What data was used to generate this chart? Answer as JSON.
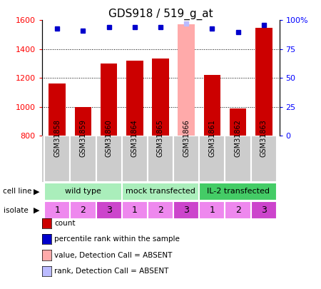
{
  "title": "GDS918 / 519_g_at",
  "samples": [
    "GSM31858",
    "GSM31859",
    "GSM31860",
    "GSM31864",
    "GSM31865",
    "GSM31866",
    "GSM31861",
    "GSM31862",
    "GSM31863"
  ],
  "bar_values": [
    1160,
    1000,
    1300,
    1320,
    1335,
    1570,
    1220,
    990,
    1545
  ],
  "rank_values": [
    93,
    91,
    94,
    94,
    94,
    97,
    93,
    90,
    96
  ],
  "absent_idx": [
    5
  ],
  "bar_color_normal": "#cc0000",
  "bar_color_absent": "#ffaaaa",
  "rank_color_normal": "#0000cc",
  "rank_color_absent": "#bbbbff",
  "ylim_left": [
    800,
    1600
  ],
  "ylim_right": [
    0,
    100
  ],
  "yticks_left": [
    800,
    1000,
    1200,
    1400,
    1600
  ],
  "yticks_right": [
    0,
    25,
    50,
    75,
    100
  ],
  "cell_line_labels": [
    "wild type",
    "mock transfected",
    "IL-2 transfected"
  ],
  "cell_line_spans": [
    [
      0,
      3
    ],
    [
      3,
      6
    ],
    [
      6,
      9
    ]
  ],
  "cell_line_colors": [
    "#aaeebb",
    "#aaeebb",
    "#44cc66"
  ],
  "isolate_labels": [
    1,
    2,
    3,
    1,
    2,
    3,
    1,
    2,
    3
  ],
  "isolate_colors": [
    "#ee88ee",
    "#ee88ee",
    "#cc44cc",
    "#ee88ee",
    "#ee88ee",
    "#cc44cc",
    "#ee88ee",
    "#ee88ee",
    "#cc44cc"
  ],
  "sample_bg_color": "#cccccc",
  "background_color": "#ffffff",
  "legend_items": [
    {
      "color": "#cc0000",
      "label": "count"
    },
    {
      "color": "#0000cc",
      "label": "percentile rank within the sample"
    },
    {
      "color": "#ffaaaa",
      "label": "value, Detection Call = ABSENT"
    },
    {
      "color": "#bbbbff",
      "label": "rank, Detection Call = ABSENT"
    }
  ]
}
